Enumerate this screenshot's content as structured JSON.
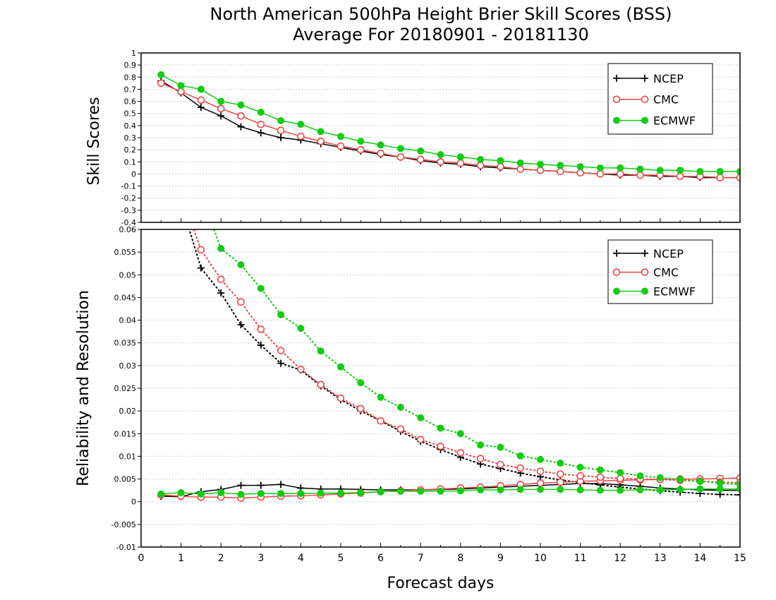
{
  "title": {
    "line1": "North American 500hPa Height Brier Skill Scores (BSS)",
    "line2": "Average For 20180901 - 20181130"
  },
  "colors": {
    "NCEP": "#000000",
    "CMC": "#ee4444",
    "ECMWF": "#11cc11",
    "grid": "#aaaaaa"
  },
  "chart_data": [
    {
      "type": "line",
      "ylabel": "Skill Scores",
      "xlim": [
        0,
        15
      ],
      "ylim": [
        -0.4,
        1
      ],
      "yticks": [
        "-0.4",
        "-0.3",
        "-0.2",
        "-0.1",
        "0",
        "0.1",
        "0.2",
        "0.3",
        "0.4",
        "0.5",
        "0.6",
        "0.7",
        "0.8",
        "0.9",
        "1"
      ],
      "grid": true,
      "legend": "top-right",
      "x": [
        0.5,
        1,
        1.5,
        2,
        2.5,
        3,
        3.5,
        4,
        4.5,
        5,
        5.5,
        6,
        6.5,
        7,
        7.5,
        8,
        8.5,
        9,
        9.5,
        10,
        10.5,
        11,
        11.5,
        12,
        12.5,
        13,
        13.5,
        14,
        14.5,
        15
      ],
      "series": [
        {
          "name": "NCEP",
          "marker": "plus",
          "style": "solid",
          "values": [
            0.77,
            0.67,
            0.55,
            0.48,
            0.39,
            0.34,
            0.3,
            0.28,
            0.25,
            0.22,
            0.19,
            0.16,
            0.14,
            0.11,
            0.09,
            0.08,
            0.06,
            0.05,
            0.04,
            0.03,
            0.02,
            0.01,
            0.0,
            -0.01,
            -0.01,
            -0.02,
            -0.02,
            -0.03,
            -0.03,
            -0.03
          ]
        },
        {
          "name": "CMC",
          "marker": "open-circle",
          "style": "solid",
          "values": [
            0.75,
            0.68,
            0.61,
            0.54,
            0.48,
            0.41,
            0.36,
            0.31,
            0.27,
            0.23,
            0.2,
            0.17,
            0.14,
            0.12,
            0.1,
            0.09,
            0.07,
            0.06,
            0.04,
            0.03,
            0.02,
            0.01,
            0.0,
            0.0,
            -0.01,
            -0.01,
            -0.02,
            -0.02,
            -0.03,
            -0.03
          ]
        },
        {
          "name": "ECMWF",
          "marker": "filled-circle",
          "style": "solid",
          "values": [
            0.82,
            0.73,
            0.7,
            0.6,
            0.57,
            0.51,
            0.44,
            0.41,
            0.35,
            0.31,
            0.27,
            0.24,
            0.21,
            0.19,
            0.16,
            0.14,
            0.12,
            0.11,
            0.09,
            0.08,
            0.07,
            0.06,
            0.05,
            0.05,
            0.04,
            0.03,
            0.03,
            0.02,
            0.02,
            0.02
          ]
        }
      ]
    },
    {
      "type": "line",
      "xlabel": "Forecast days",
      "ylabel": "Reliability and Resolution",
      "xlim": [
        0,
        15
      ],
      "ylim": [
        -0.01,
        0.06
      ],
      "xticks": [
        "0",
        "1",
        "2",
        "3",
        "4",
        "5",
        "6",
        "7",
        "8",
        "9",
        "10",
        "11",
        "12",
        "13",
        "14",
        "15"
      ],
      "yticks": [
        "-0.01",
        "-0.005",
        "0",
        "0.005",
        "0.01",
        "0.015",
        "0.02",
        "0.025",
        "0.03",
        "0.035",
        "0.04",
        "0.045",
        "0.05",
        "0.055",
        "0.06"
      ],
      "grid": true,
      "legend": "top-right",
      "x": [
        0.5,
        1,
        1.5,
        2,
        2.5,
        3,
        3.5,
        4,
        4.5,
        5,
        5.5,
        6,
        6.5,
        7,
        7.5,
        8,
        8.5,
        9,
        9.5,
        10,
        10.5,
        11,
        11.5,
        12,
        12.5,
        13,
        13.5,
        14,
        14.5,
        15
      ],
      "series": [
        {
          "name": "NCEP",
          "marker": "plus",
          "style": "solid",
          "values": [
            0.0012,
            0.0011,
            0.0022,
            0.0027,
            0.0036,
            0.0036,
            0.0038,
            0.003,
            0.0028,
            0.0028,
            0.0027,
            0.0026,
            0.0026,
            0.0026,
            0.0027,
            0.0028,
            0.003,
            0.0032,
            0.0034,
            0.0036,
            0.0038,
            0.004,
            0.004,
            0.0037,
            0.0034,
            0.003,
            0.0028,
            0.0026,
            0.0025,
            0.0025
          ]
        },
        {
          "name": "NCEP",
          "marker": "plus",
          "style": "dotted",
          "values": [
            null,
            0.066,
            0.0515,
            0.046,
            0.039,
            0.0345,
            0.0305,
            0.029,
            0.0255,
            0.0225,
            0.02,
            0.0178,
            0.0155,
            0.0133,
            0.0115,
            0.0098,
            0.0083,
            0.0073,
            0.0063,
            0.0055,
            0.0048,
            0.0042,
            0.0037,
            0.0032,
            0.0028,
            0.0024,
            0.0021,
            0.0018,
            0.0016,
            0.0015
          ]
        },
        {
          "name": "CMC",
          "marker": "open-circle",
          "style": "solid",
          "values": [
            0.0015,
            0.0012,
            0.001,
            0.001,
            0.0008,
            0.001,
            0.0012,
            0.0013,
            0.0015,
            0.0017,
            0.0019,
            0.0022,
            0.0024,
            0.0026,
            0.0028,
            0.003,
            0.0032,
            0.0035,
            0.0038,
            0.0041,
            0.0043,
            0.0045,
            0.0046,
            0.0047,
            0.0048,
            0.0049,
            0.005,
            0.005,
            0.0051,
            0.0052
          ]
        },
        {
          "name": "CMC",
          "marker": "open-circle",
          "style": "dotted",
          "values": [
            null,
            0.068,
            0.0555,
            0.049,
            0.044,
            0.038,
            0.0333,
            0.0292,
            0.0258,
            0.0228,
            0.0205,
            0.0178,
            0.016,
            0.0137,
            0.0122,
            0.0108,
            0.0095,
            0.0082,
            0.0074,
            0.0067,
            0.0061,
            0.0057,
            0.0054,
            0.0051,
            0.005,
            0.0049,
            0.0047,
            0.0045,
            0.0043,
            0.0042
          ]
        },
        {
          "name": "ECMWF",
          "marker": "filled-circle",
          "style": "solid",
          "values": [
            0.0017,
            0.002,
            0.0017,
            0.002,
            0.0016,
            0.0018,
            0.0018,
            0.0018,
            0.0019,
            0.0019,
            0.002,
            0.0022,
            0.0023,
            0.0023,
            0.0023,
            0.0024,
            0.0026,
            0.0026,
            0.0027,
            0.0027,
            0.0027,
            0.0026,
            0.0025,
            0.0025,
            0.0026,
            0.0026,
            0.0027,
            0.0028,
            0.0028,
            0.0028
          ]
        },
        {
          "name": "ECMWF",
          "marker": "filled-circle",
          "style": "dotted",
          "values": [
            null,
            null,
            0.068,
            0.0558,
            0.0522,
            0.047,
            0.0412,
            0.0382,
            0.0332,
            0.0297,
            0.0262,
            0.023,
            0.0208,
            0.0185,
            0.0162,
            0.015,
            0.0125,
            0.012,
            0.0101,
            0.0093,
            0.0085,
            0.0076,
            0.007,
            0.0064,
            0.0057,
            0.0053,
            0.0049,
            0.0045,
            0.0041,
            0.0038
          ]
        }
      ]
    }
  ]
}
